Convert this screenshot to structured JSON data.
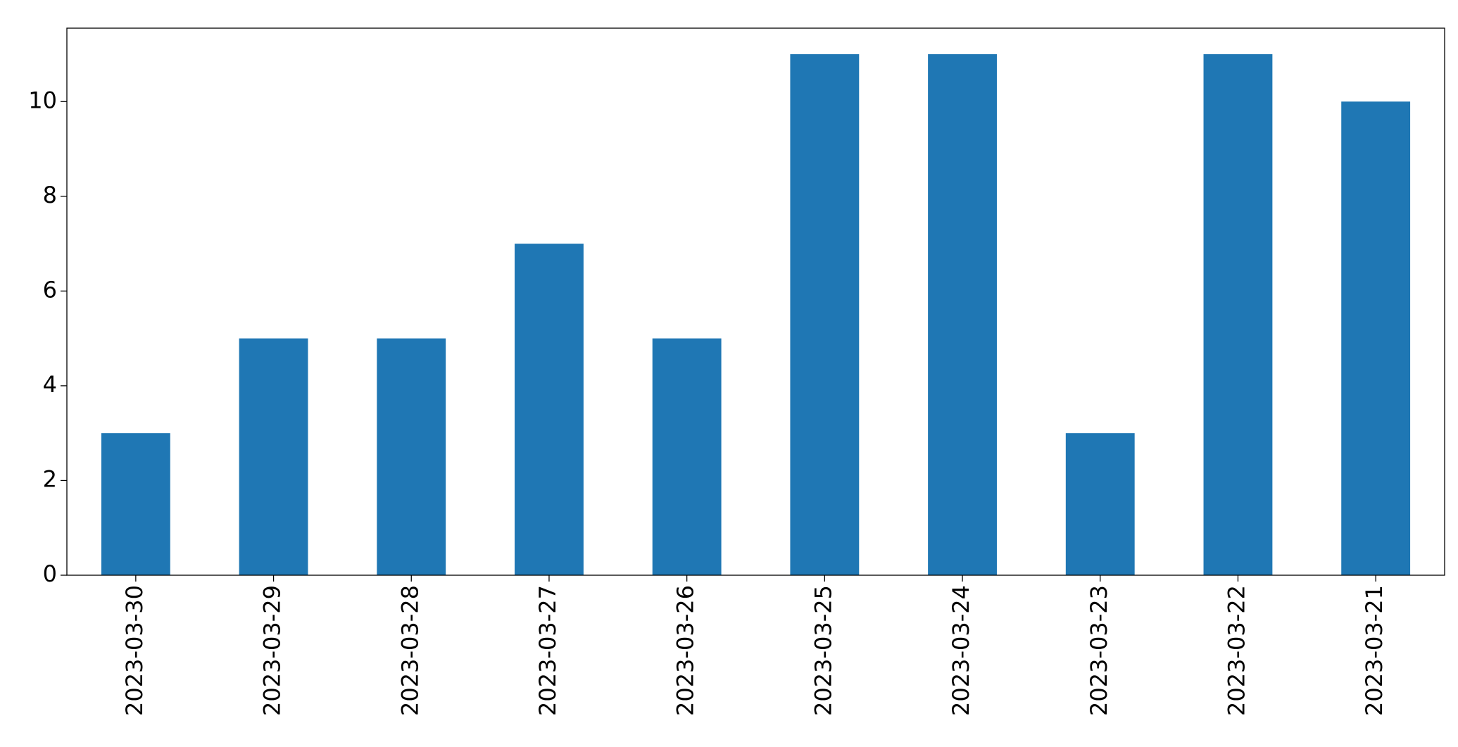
{
  "chart_data": {
    "type": "bar",
    "categories": [
      "2023-03-30",
      "2023-03-29",
      "2023-03-28",
      "2023-03-27",
      "2023-03-26",
      "2023-03-25",
      "2023-03-24",
      "2023-03-23",
      "2023-03-22",
      "2023-03-21"
    ],
    "values": [
      3,
      5,
      5,
      7,
      5,
      11,
      11,
      3,
      11,
      10
    ],
    "color": "#1f77b4",
    "ylim": [
      0,
      11.55
    ],
    "yticks": [
      0,
      2,
      4,
      6,
      8,
      10
    ],
    "grid": false
  }
}
